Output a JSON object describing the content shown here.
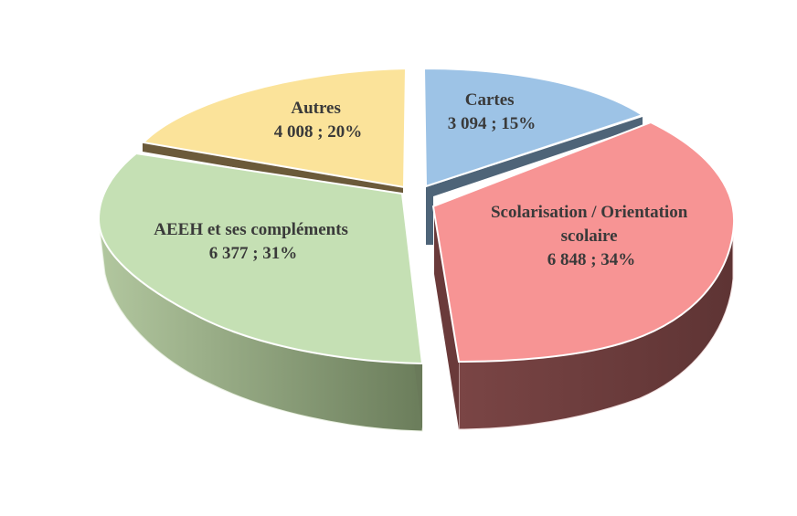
{
  "chart_data": {
    "type": "pie",
    "style": "3d-exploded",
    "title": "",
    "slices": [
      {
        "label_lines": [
          "Cartes"
        ],
        "value_text": "3 094 ; 15%",
        "value": 3094,
        "percent": 15,
        "color": "#9dc3e6",
        "side_color": "#4e6478"
      },
      {
        "label_lines": [
          "Scolarisation / Orientation",
          "scolaire"
        ],
        "value_text": "6 848 ; 34%",
        "value": 6848,
        "percent": 34,
        "color": "#f79494",
        "side_color": "#6a3a3a"
      },
      {
        "label_lines": [
          "AEEH et ses compléments"
        ],
        "value_text": "6 377 ; 31%",
        "value": 6377,
        "percent": 31,
        "color": "#c5e0b4",
        "side_color": "#7f9565"
      },
      {
        "label_lines": [
          "Autres"
        ],
        "value_text": "4 008 ; 20%",
        "value": 4008,
        "percent": 20,
        "color": "#fbe39a",
        "side_color": "#6b5a3a"
      }
    ]
  }
}
